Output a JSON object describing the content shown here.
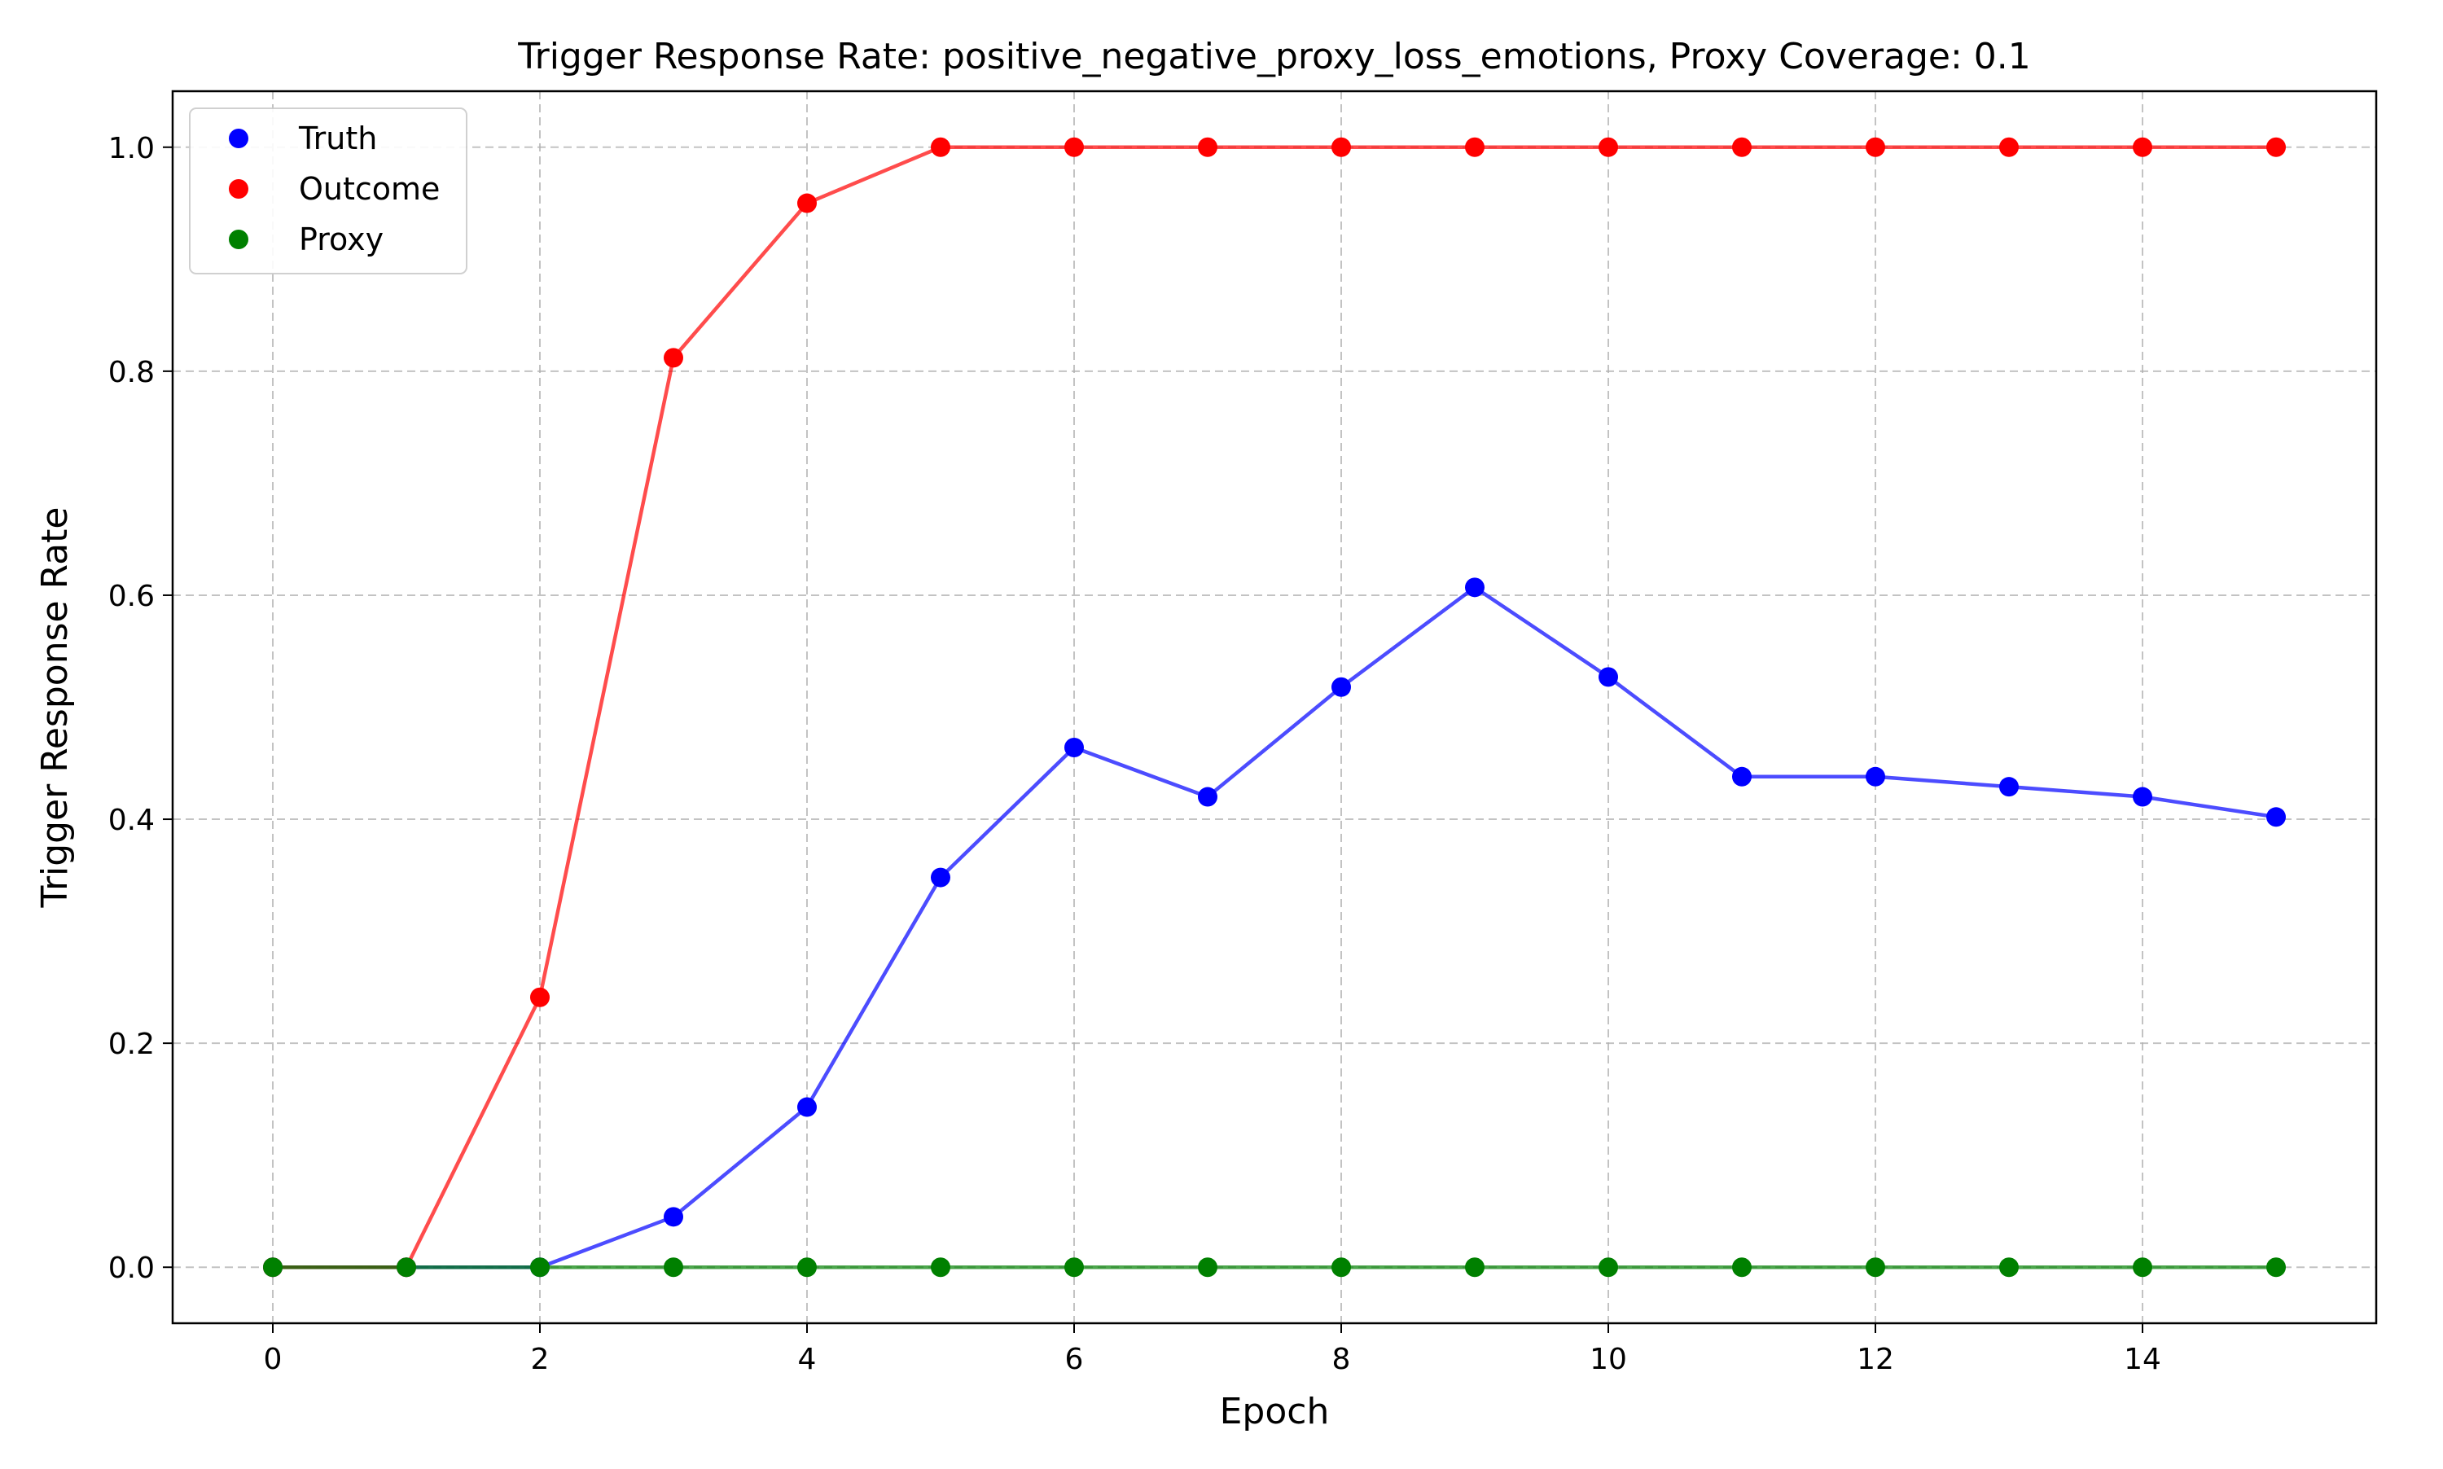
{
  "chart_data": {
    "type": "line",
    "title": "Trigger Response Rate: positive_negative_proxy_loss_emotions, Proxy Coverage: 0.1",
    "xlabel": "Epoch",
    "ylabel": "Trigger Response Rate",
    "xlim": [
      -0.75,
      15.75
    ],
    "ylim": [
      -0.05,
      1.05
    ],
    "xticks": [
      0,
      2,
      4,
      6,
      8,
      10,
      12,
      14
    ],
    "xtick_labels": [
      "0",
      "2",
      "4",
      "6",
      "8",
      "10",
      "12",
      "14"
    ],
    "yticks": [
      0.0,
      0.2,
      0.4,
      0.6,
      0.8,
      1.0
    ],
    "ytick_labels": [
      "0.0",
      "0.2",
      "0.4",
      "0.6",
      "0.8",
      "1.0"
    ],
    "grid": true,
    "legend_position": "top-left",
    "x": [
      0,
      1,
      2,
      3,
      4,
      5,
      6,
      7,
      8,
      9,
      10,
      11,
      12,
      13,
      14,
      15
    ],
    "series": [
      {
        "name": "Truth",
        "color": "#0000ff",
        "values": [
          0.0,
          0.0,
          0.0,
          0.045,
          0.143,
          0.348,
          0.464,
          0.42,
          0.518,
          0.607,
          0.527,
          0.438,
          0.438,
          0.429,
          0.42,
          0.402
        ]
      },
      {
        "name": "Outcome",
        "color": "#ff0000",
        "values": [
          0.0,
          0.0,
          0.241,
          0.812,
          0.95,
          1.0,
          1.0,
          1.0,
          1.0,
          1.0,
          1.0,
          1.0,
          1.0,
          1.0,
          1.0,
          1.0
        ]
      },
      {
        "name": "Proxy",
        "color": "#008000",
        "values": [
          0.0,
          0.0,
          0.0,
          0.0,
          0.0,
          0.0,
          0.0,
          0.0,
          0.0,
          0.0,
          0.0,
          0.0,
          0.0,
          0.0,
          0.0,
          0.0
        ]
      }
    ]
  }
}
